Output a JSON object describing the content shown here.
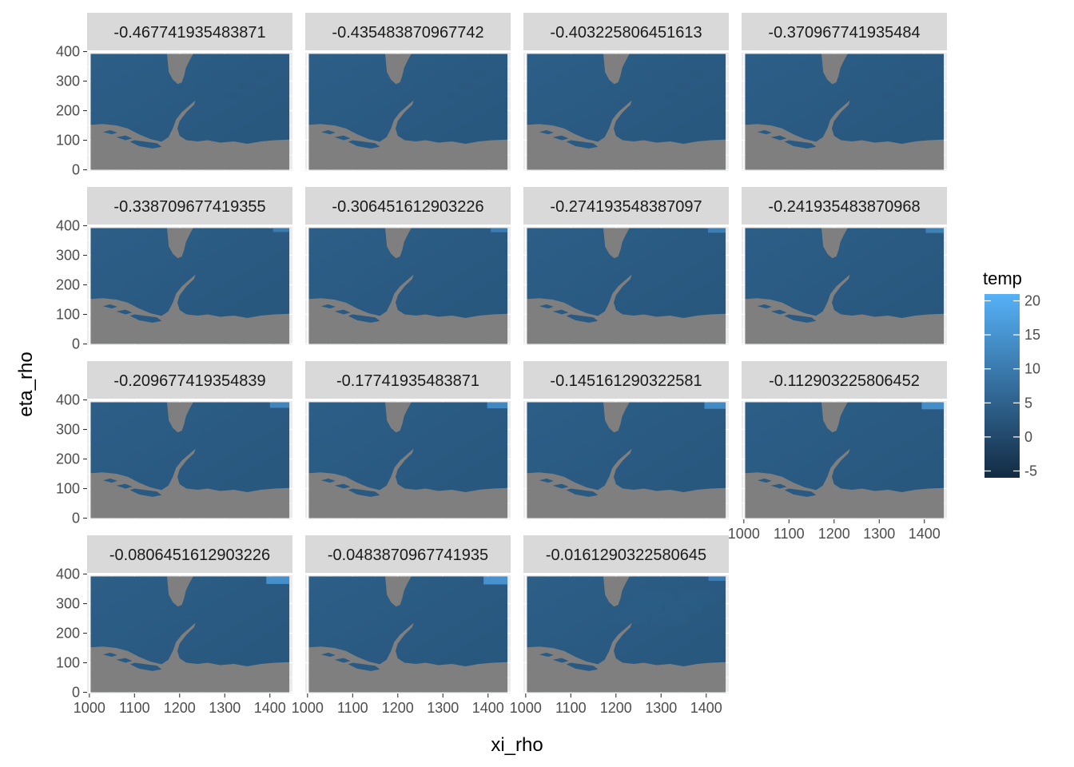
{
  "chart_data": {
    "type": "heatmap",
    "subtype": "faceted raster map",
    "xlabel": "xi_rho",
    "ylabel": "eta_rho",
    "x_ticks": [
      1000,
      1100,
      1200,
      1300,
      1400
    ],
    "y_ticks": [
      0,
      100,
      200,
      300,
      400
    ],
    "x_tick_labels": [
      "1000",
      "1100",
      "1200",
      "1300",
      "1400"
    ],
    "y_tick_labels": [
      "0",
      "100",
      "200",
      "300",
      "400"
    ],
    "xlim": [
      995,
      1450
    ],
    "ylim": [
      -4,
      396
    ],
    "data_extent": {
      "x": [
        1003,
        1443
      ],
      "y": [
        0,
        392
      ]
    },
    "facets": [
      "-0.467741935483871",
      "-0.435483870967742",
      "-0.403225806451613",
      "-0.370967741935484",
      "-0.338709677419355",
      "-0.306451612903226",
      "-0.274193548387097",
      "-0.241935483870968",
      "-0.209677419354839",
      "-0.17741935483871",
      "-0.145161290322581",
      "-0.112903225806452",
      "-0.0806451612903226",
      "-0.0483870967741935",
      "-0.0161290322580645"
    ],
    "facet_warm_corner": [
      0,
      0,
      0,
      0,
      0.15,
      0.2,
      0.3,
      0.35,
      0.5,
      0.6,
      0.7,
      0.8,
      0.9,
      1.0,
      0.25
    ],
    "facet_texture": [
      0.2,
      0.2,
      0.2,
      0.2,
      0.25,
      0.25,
      0.25,
      0.25,
      0.3,
      0.3,
      0.3,
      0.3,
      0.35,
      0.6,
      1.0
    ],
    "land_color": "#7f7f7f",
    "legend": {
      "title": "temp",
      "position": "right",
      "ticks": [
        20,
        15,
        10,
        5,
        0,
        -5
      ],
      "tick_labels": [
        "20",
        "15",
        "10",
        "5",
        "0",
        "-5"
      ],
      "range": [
        -6,
        21
      ],
      "low_color": "#132b43",
      "high_color": "#56b1f7"
    },
    "panel_background": "#ebebeb",
    "grid": true,
    "strip_background": "#d9d9d9"
  }
}
